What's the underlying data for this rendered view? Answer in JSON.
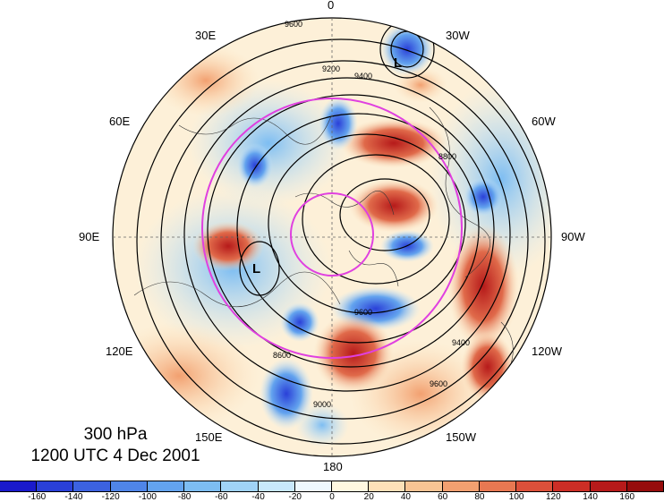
{
  "title": {
    "level": "300 hPa",
    "time": "1200 UTC 4 Dec 2001"
  },
  "longitude_labels": [
    "0",
    "30W",
    "60W",
    "90W",
    "120W",
    "150W",
    "180",
    "150E",
    "120E",
    "90E",
    "60E",
    "30E"
  ],
  "contour_labels": [
    "9600",
    "9400",
    "9200",
    "9000",
    "8800",
    "8600"
  ],
  "pressure_center": "L",
  "colorbar": {
    "ticks": [
      "-160",
      "-140",
      "-120",
      "-100",
      "-80",
      "-60",
      "-40",
      "-20",
      "0",
      "20",
      "40",
      "60",
      "80",
      "100",
      "120",
      "140",
      "160"
    ],
    "colors": [
      "#1a1acc",
      "#2a40d8",
      "#3c62e0",
      "#4f85e8",
      "#63a3ee",
      "#7dbdf2",
      "#a0d3f6",
      "#c8e8fb",
      "#eef8fd",
      "#fff8e0",
      "#fde0b8",
      "#f8c494",
      "#f2a070",
      "#e87852",
      "#dc503a",
      "#cc2e26",
      "#b61a1a",
      "#960c0c"
    ]
  },
  "colors": {
    "ring": "#e040e0",
    "contour": "#000000",
    "map_edge": "#000000"
  }
}
